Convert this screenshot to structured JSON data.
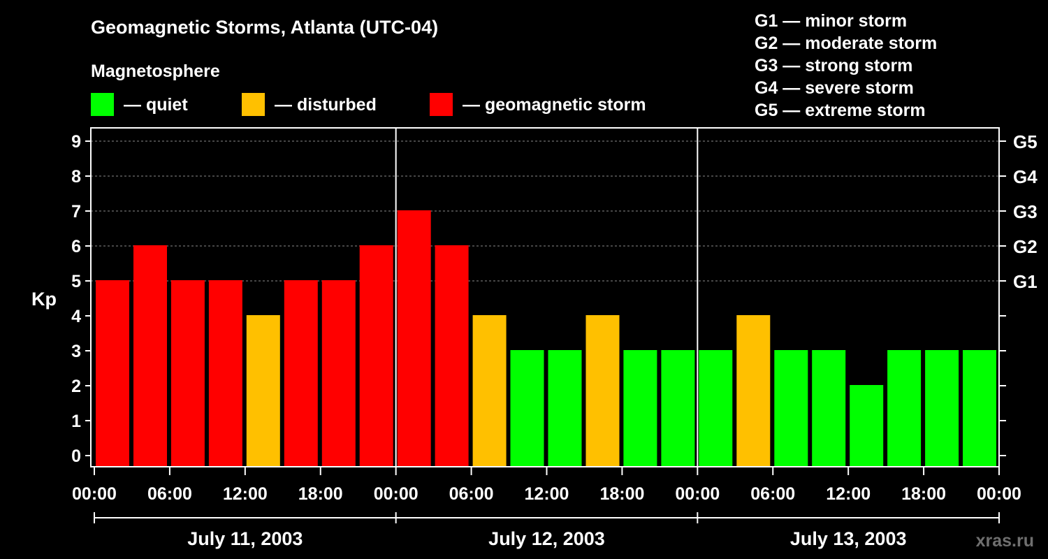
{
  "title": "Geomagnetic Storms, Atlanta (UTC-04)",
  "legend": {
    "heading": "Magnetosphere",
    "items": [
      {
        "label": "— quiet",
        "color": "#00ff00"
      },
      {
        "label": "— disturbed",
        "color": "#ffc000"
      },
      {
        "label": "— geomagnetic storm",
        "color": "#ff0000"
      }
    ]
  },
  "storm_scale": [
    {
      "level": "G1",
      "label": "G1 — minor storm"
    },
    {
      "level": "G2",
      "label": "G2 — moderate storm"
    },
    {
      "level": "G3",
      "label": "G3 — strong storm"
    },
    {
      "level": "G4",
      "label": "G4 — severe storm"
    },
    {
      "level": "G5",
      "label": "G5 — extreme storm"
    }
  ],
  "watermark": "xras.ru",
  "chart_data": {
    "type": "bar",
    "ylabel": "Kp",
    "ylim": [
      0,
      9
    ],
    "yticks": [
      "0",
      "1",
      "2",
      "3",
      "4",
      "5",
      "6",
      "7",
      "8",
      "9"
    ],
    "right_axis_ticks": [
      {
        "kp": 5,
        "label": "G1"
      },
      {
        "kp": 6,
        "label": "G2"
      },
      {
        "kp": 7,
        "label": "G3"
      },
      {
        "kp": 8,
        "label": "G4"
      },
      {
        "kp": 9,
        "label": "G5"
      }
    ],
    "xticks": [
      "00:00",
      "06:00",
      "12:00",
      "18:00",
      "00:00",
      "06:00",
      "12:00",
      "18:00",
      "00:00",
      "06:00",
      "12:00",
      "18:00",
      "00:00"
    ],
    "days": [
      "July 11, 2003",
      "July 12, 2003",
      "July 13, 2003"
    ],
    "interval_hours": 3,
    "values": [
      5,
      6,
      5,
      5,
      4,
      5,
      5,
      6,
      7,
      6,
      4,
      3,
      3,
      4,
      3,
      3,
      3,
      4,
      3,
      3,
      2,
      3,
      3,
      3
    ],
    "colors": {
      "quiet": "#00ff00",
      "disturbed": "#ffc000",
      "storm": "#ff0000"
    }
  }
}
